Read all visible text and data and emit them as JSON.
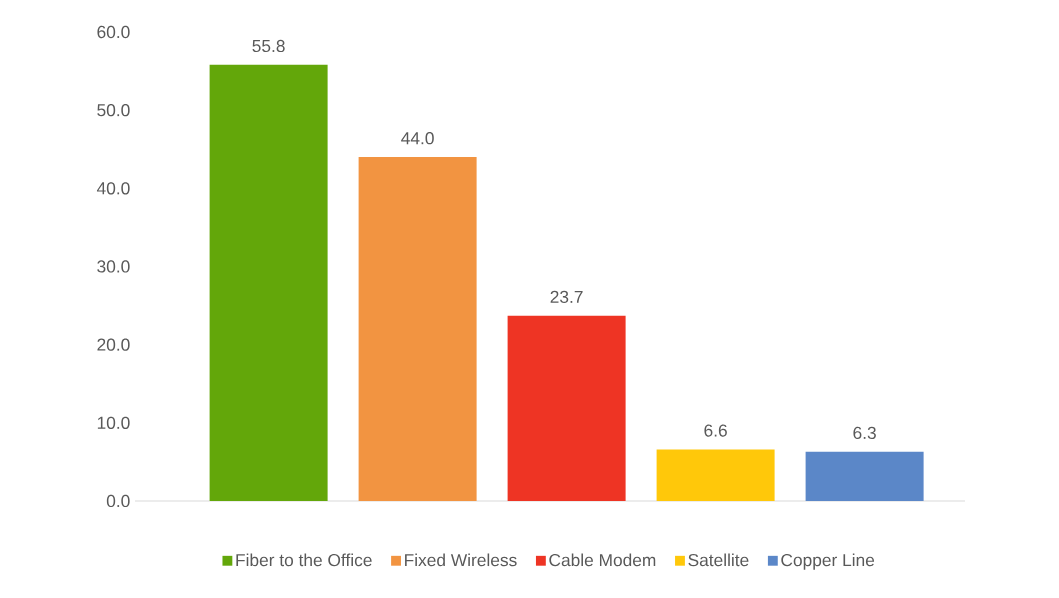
{
  "chart_data": {
    "type": "bar",
    "categories": [
      null
    ],
    "series": [
      {
        "name": "Fiber to the Office",
        "color": "#63a70a",
        "values": [
          55.8
        ],
        "value_labels": [
          "55.8"
        ]
      },
      {
        "name": "Fixed Wireless",
        "color": "#f29441",
        "values": [
          44.0
        ],
        "value_labels": [
          "44.0"
        ]
      },
      {
        "name": "Cable Modem",
        "color": "#ee3424",
        "values": [
          23.7
        ],
        "value_labels": [
          "23.7"
        ]
      },
      {
        "name": "Satellite",
        "color": "#ffc80a",
        "values": [
          6.6
        ],
        "value_labels": [
          "6.6"
        ]
      },
      {
        "name": "Copper Line",
        "color": "#5b87c8",
        "values": [
          6.3
        ],
        "value_labels": [
          "6.3"
        ]
      }
    ],
    "ylim": [
      0,
      60
    ],
    "yticks": [
      {
        "value": 0,
        "label": "0.0"
      },
      {
        "value": 10,
        "label": "10.0"
      },
      {
        "value": 20,
        "label": "20.0"
      },
      {
        "value": 30,
        "label": "30.0"
      },
      {
        "value": 40,
        "label": "40.0"
      },
      {
        "value": 50,
        "label": "50.0"
      },
      {
        "value": 60,
        "label": "60.0"
      }
    ],
    "legend": "bottom",
    "grid": false
  }
}
